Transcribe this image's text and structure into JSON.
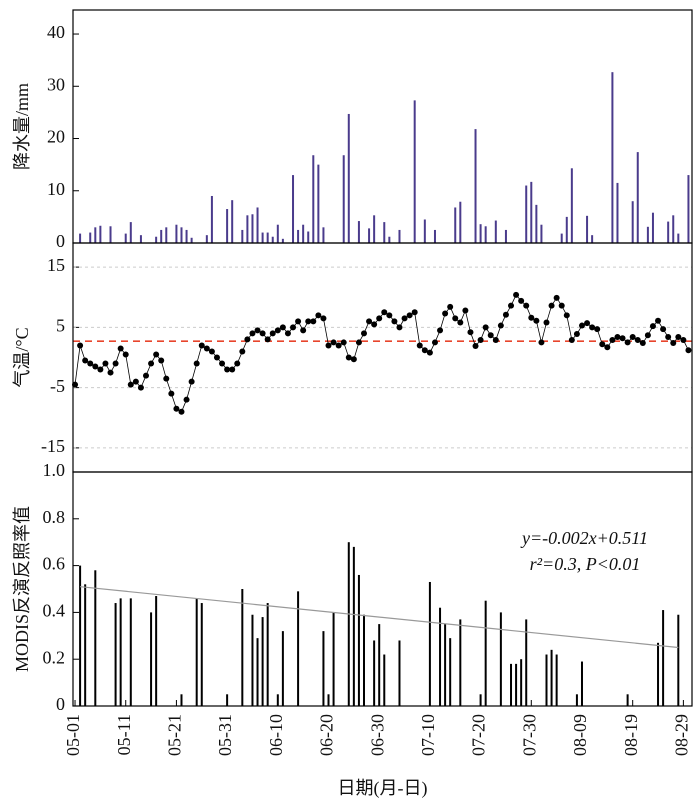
{
  "chart_data": [
    {
      "type": "bar",
      "ylabel": "降水量/mm",
      "color": "#4a3b8c",
      "x": [
        1,
        3,
        4,
        5,
        7,
        10,
        11,
        13,
        16,
        17,
        18,
        20,
        21,
        22,
        23,
        26,
        27,
        30,
        31,
        33,
        34,
        35,
        36,
        37,
        38,
        39,
        40,
        41,
        43,
        44,
        45,
        46,
        47,
        48,
        49,
        53,
        54,
        56,
        58,
        59,
        61,
        62,
        64,
        67,
        69,
        71,
        75,
        76,
        79,
        80,
        81,
        83,
        85,
        89,
        90,
        91,
        92,
        96,
        97,
        98,
        101,
        102,
        106,
        107,
        110,
        111,
        113,
        114,
        117,
        118,
        119,
        121
      ],
      "values": [
        1.8,
        2,
        3,
        3.3,
        3.2,
        1.8,
        4,
        1.5,
        1.2,
        2.5,
        3,
        3.5,
        3,
        2.5,
        1,
        1.5,
        9,
        6.5,
        8.2,
        2.5,
        5.3,
        5.5,
        6.8,
        2,
        2,
        1.2,
        3.5,
        0.8,
        13,
        2.5,
        3.5,
        2.2,
        16.8,
        15,
        3,
        16.8,
        24.7,
        4.2,
        2.8,
        5.3,
        4,
        1.2,
        2.5,
        27.3,
        4.5,
        2.5,
        6.8,
        7.9,
        21.8,
        3.6,
        3.2,
        4.3,
        2.5,
        11,
        11.7,
        7.3,
        3.5,
        1.8,
        5,
        14.3,
        5.2,
        1.5,
        32.7,
        11.5,
        8,
        17.4,
        3.1,
        5.8,
        4.1,
        5.3,
        1.8,
        13
      ],
      "xlim": [
        -0.4,
        121.7
      ],
      "ylim": [
        0,
        44.6
      ],
      "yticks": [
        0,
        10,
        20,
        30,
        40
      ],
      "grid": false
    },
    {
      "type": "line",
      "ylabel": "气温/°C",
      "color": "#000000",
      "markers": true,
      "x": [
        0,
        1,
        2,
        3,
        4,
        5,
        6,
        7,
        8,
        9,
        10,
        11,
        12,
        13,
        14,
        15,
        16,
        17,
        18,
        19,
        20,
        21,
        22,
        23,
        24,
        25,
        26,
        27,
        28,
        29,
        30,
        31,
        32,
        33,
        34,
        35,
        36,
        37,
        38,
        39,
        40,
        41,
        42,
        43,
        44,
        45,
        46,
        47,
        48,
        49,
        50,
        51,
        52,
        53,
        54,
        55,
        56,
        57,
        58,
        59,
        60,
        61,
        62,
        63,
        64,
        65,
        66,
        67,
        68,
        69,
        70,
        71,
        72,
        73,
        74,
        75,
        76,
        77,
        78,
        79,
        80,
        81,
        82,
        83,
        84,
        85,
        86,
        87,
        88,
        89,
        90,
        91,
        92,
        93,
        94,
        95,
        96,
        97,
        98,
        99,
        100,
        101,
        102,
        103,
        104,
        105,
        106,
        107,
        108,
        109,
        110,
        111,
        112,
        113,
        114,
        115,
        116,
        117,
        118,
        119,
        120,
        121
      ],
      "values": [
        -4.5,
        2,
        -0.5,
        -1,
        -1.5,
        -2,
        -1,
        -2.5,
        -1,
        1.5,
        0.5,
        -4.5,
        -4,
        -5,
        -3,
        -1,
        0.5,
        -0.5,
        -3.5,
        -6,
        -8.5,
        -9,
        -7,
        -4,
        -1,
        2,
        1.5,
        1,
        0,
        -1,
        -2,
        -2,
        -1,
        1,
        3,
        4,
        4.5,
        4,
        3,
        4,
        4.5,
        5,
        4,
        5,
        6,
        4.5,
        6,
        6,
        7,
        6.5,
        2,
        2.5,
        2,
        2.5,
        0,
        -0.3,
        2.5,
        4,
        6,
        5.5,
        6.5,
        7.5,
        7,
        6,
        5,
        6.5,
        7,
        7.5,
        2,
        1.2,
        0.8,
        2.5,
        4.5,
        7.3,
        8.4,
        6.5,
        5.8,
        7.8,
        4.2,
        1.9,
        2.9,
        5,
        3.7,
        2.9,
        5.3,
        7.1,
        8.6,
        10.4,
        9.4,
        8.6,
        6.6,
        6.1,
        2.5,
        5.8,
        8.6,
        9.9,
        8.6,
        7,
        2.9,
        3.9,
        5.3,
        5.7,
        5,
        4.7,
        2.2,
        1.7,
        2.9,
        3.4,
        3.2,
        2.5,
        3.4,
        2.9,
        2.4,
        3.7,
        5.2,
        6.1,
        4.7,
        3.4,
        2.4,
        3.4,
        2.9,
        1.2
      ],
      "reference_line": {
        "value": 2.7,
        "color": "#e8452c"
      },
      "xlim": [
        -0.4,
        121.7
      ],
      "ylim": [
        -19,
        19
      ],
      "yticks": [
        -15,
        -5,
        5,
        15
      ],
      "grid": true
    },
    {
      "type": "bar",
      "ylabel": "MODIS反演反照率值",
      "xlabel": "日期(月-日)",
      "color": "#000000",
      "x": [
        1,
        2,
        4,
        8,
        9,
        11,
        15,
        16,
        21,
        24,
        25,
        30,
        33,
        35,
        36,
        37,
        38,
        40,
        41,
        44,
        49,
        50,
        51,
        54,
        55,
        56,
        57,
        59,
        60,
        61,
        64,
        70,
        72,
        73,
        74,
        76,
        80,
        81,
        84,
        86,
        87,
        88,
        89,
        93,
        94,
        95,
        99,
        100,
        109,
        115,
        116,
        119
      ],
      "values": [
        0.6,
        0.52,
        0.58,
        0.44,
        0.46,
        0.46,
        0.4,
        0.47,
        0.05,
        0.46,
        0.44,
        0.05,
        0.5,
        0.39,
        0.29,
        0.38,
        0.44,
        0.05,
        0.32,
        0.49,
        0.32,
        0.05,
        0.4,
        0.7,
        0.68,
        0.56,
        0.39,
        0.28,
        0.35,
        0.22,
        0.28,
        0.53,
        0.42,
        0.35,
        0.29,
        0.37,
        0.05,
        0.45,
        0.4,
        0.18,
        0.18,
        0.2,
        0.37,
        0.22,
        0.24,
        0.22,
        0.05,
        0.19,
        0.05,
        0.27,
        0.41,
        0.39
      ],
      "trend": {
        "x": [
          1,
          119
        ],
        "values": [
          0.51,
          0.25
        ],
        "color": "#999999"
      },
      "annotations": [
        "y=-0.002x+0.511",
        "r²=0.3, P<0.01"
      ],
      "xlim": [
        -0.4,
        121.7
      ],
      "xticks": [
        {
          "value": 0,
          "label": "05-01"
        },
        {
          "value": 10,
          "label": "05-11"
        },
        {
          "value": 20,
          "label": "05-21"
        },
        {
          "value": 30,
          "label": "05-31"
        },
        {
          "value": 40,
          "label": "06-10"
        },
        {
          "value": 50,
          "label": "06-20"
        },
        {
          "value": 60,
          "label": "06-30"
        },
        {
          "value": 70,
          "label": "07-10"
        },
        {
          "value": 80,
          "label": "07-20"
        },
        {
          "value": 90,
          "label": "07-30"
        },
        {
          "value": 100,
          "label": "08-09"
        },
        {
          "value": 110,
          "label": "08-19"
        },
        {
          "value": 120,
          "label": "08-29"
        }
      ],
      "ylim": [
        0,
        1
      ],
      "yticks": [
        0,
        0.2,
        0.4,
        0.6,
        0.8,
        {
          "value": 1,
          "label": "1.0"
        }
      ],
      "grid": false
    }
  ]
}
